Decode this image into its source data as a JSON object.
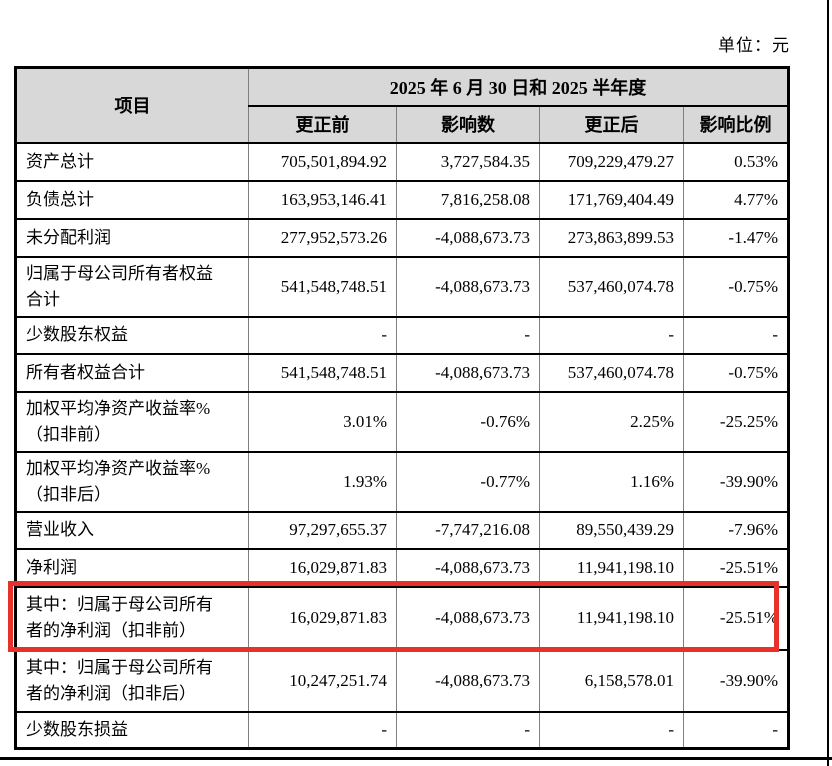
{
  "meta": {
    "unit_label": "单位：元"
  },
  "colors": {
    "highlight": "#e8312b",
    "header_bg": "#d8d8d8"
  },
  "table": {
    "header": {
      "item": "项目",
      "period": "2025 年 6 月 30 日和 2025 半年度",
      "columns": [
        "更正前",
        "影响数",
        "更正后",
        "影响比例"
      ]
    },
    "rows": [
      {
        "label": "资产总计",
        "before": "705,501,894.92",
        "impact": "3,727,584.35",
        "after": "709,229,479.27",
        "ratio": "0.53%",
        "highlighted": false
      },
      {
        "label": "负债总计",
        "before": "163,953,146.41",
        "impact": "7,816,258.08",
        "after": "171,769,404.49",
        "ratio": "4.77%",
        "highlighted": false
      },
      {
        "label": "未分配利润",
        "before": "277,952,573.26",
        "impact": "-4,088,673.73",
        "after": "273,863,899.53",
        "ratio": "-1.47%",
        "highlighted": false
      },
      {
        "label": "归属于母公司所有者权益\n合计",
        "before": "541,548,748.51",
        "impact": "-4,088,673.73",
        "after": "537,460,074.78",
        "ratio": "-0.75%",
        "highlighted": false
      },
      {
        "label": "少数股东权益",
        "before": "-",
        "impact": "-",
        "after": "-",
        "ratio": "-",
        "highlighted": false
      },
      {
        "label": "所有者权益合计",
        "before": "541,548,748.51",
        "impact": "-4,088,673.73",
        "after": "537,460,074.78",
        "ratio": "-0.75%",
        "highlighted": false
      },
      {
        "label": "加权平均净资产收益率%\n（扣非前）",
        "before": "3.01%",
        "impact": "-0.76%",
        "after": "2.25%",
        "ratio": "-25.25%",
        "highlighted": false
      },
      {
        "label": "加权平均净资产收益率%\n（扣非后）",
        "before": "1.93%",
        "impact": "-0.77%",
        "after": "1.16%",
        "ratio": "-39.90%",
        "highlighted": false
      },
      {
        "label": "营业收入",
        "before": "97,297,655.37",
        "impact": "-7,747,216.08",
        "after": "89,550,439.29",
        "ratio": "-7.96%",
        "highlighted": false
      },
      {
        "label": "净利润",
        "before": "16,029,871.83",
        "impact": "-4,088,673.73",
        "after": "11,941,198.10",
        "ratio": "-25.51%",
        "highlighted": false
      },
      {
        "label": "其中：归属于母公司所有\n者的净利润（扣非前）",
        "before": "16,029,871.83",
        "impact": "-4,088,673.73",
        "after": "11,941,198.10",
        "ratio": "-25.51%",
        "highlighted": true
      },
      {
        "label": "其中：归属于母公司所有\n者的净利润（扣非后）",
        "before": "10,247,251.74",
        "impact": "-4,088,673.73",
        "after": "6,158,578.01",
        "ratio": "-39.90%",
        "highlighted": false
      },
      {
        "label": "少数股东损益",
        "before": "-",
        "impact": "-",
        "after": "-",
        "ratio": "-",
        "highlighted": false
      }
    ]
  }
}
